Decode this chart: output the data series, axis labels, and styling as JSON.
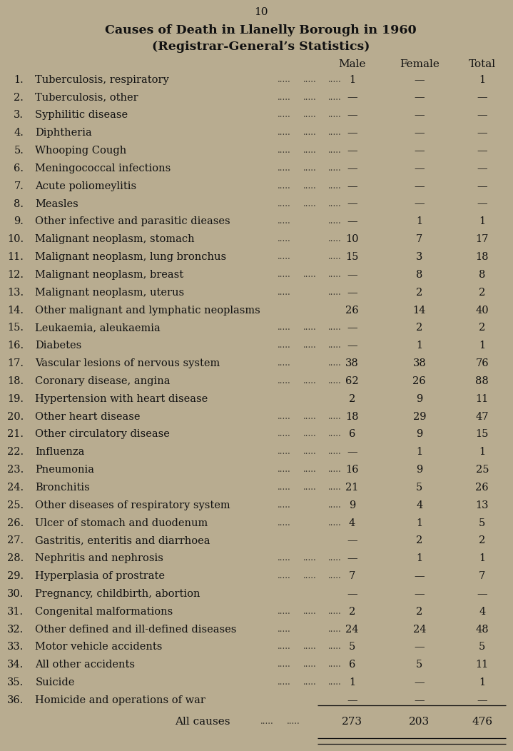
{
  "page_number": "10",
  "title_line1": "Causes of Death in Llanelly Borough in 1960",
  "title_line2": "(Registrar-General’s Statistics)",
  "col_headers": [
    "Male",
    "Female",
    "Total"
  ],
  "rows": [
    {
      "num": "1.",
      "label": "Tuberculosis, respiratory",
      "dots1": ".....",
      "dots2": ".....",
      "male": "1",
      "female": "—",
      "total": "1"
    },
    {
      "num": "2.",
      "label": "Tuberculosis, other",
      "dots1": ".....",
      "dots2": ".....",
      "male": "—",
      "female": "—",
      "total": "—"
    },
    {
      "num": "3.",
      "label": "Syphilitic disease",
      "dots1": ".....",
      "dots2": ".....",
      "male": "—",
      "female": "—",
      "total": "—"
    },
    {
      "num": "4.",
      "label": "Diphtheria",
      "dots1": ".....",
      "dots2": ".....",
      "male": "—",
      "female": "—",
      "total": "—"
    },
    {
      "num": "5.",
      "label": "Whooping Cough",
      "dots1": ".....",
      "dots2": ".....",
      "male": "—",
      "female": "—",
      "total": "—"
    },
    {
      "num": "6.",
      "label": "Meningococcal infections",
      "dots1": ".....",
      "dots2": ".....",
      "male": "—",
      "female": "—",
      "total": "—"
    },
    {
      "num": "7.",
      "label": "Acute poliomeylitis",
      "dots1": ".....",
      "dots2": ".....",
      "male": "—",
      "female": "—",
      "total": "—"
    },
    {
      "num": "8.",
      "label": "Measles",
      "dots1": ".....",
      "dots2": ".....",
      "male": "—",
      "female": "—",
      "total": "—"
    },
    {
      "num": "9.",
      "label": "Other infective and parasitic dieases",
      "dots1": ".....",
      "dots2": "",
      "male": "—",
      "female": "1",
      "total": "1"
    },
    {
      "num": "10.",
      "label": "Malignant neoplasm, stomach",
      "dots1": ".....",
      "dots2": "",
      "male": "10",
      "female": "7",
      "total": "17"
    },
    {
      "num": "11.",
      "label": "Malignant neoplasm, lung bronchus",
      "dots1": ".....",
      "dots2": "",
      "male": "15",
      "female": "3",
      "total": "18"
    },
    {
      "num": "12.",
      "label": "Malignant neoplasm, breast",
      "dots1": ".....",
      "dots2": ".....",
      "male": "—",
      "female": "8",
      "total": "8"
    },
    {
      "num": "13.",
      "label": "Malignant neoplasm, uterus",
      "dots1": ".....",
      "dots2": "",
      "male": "—",
      "female": "2",
      "total": "2"
    },
    {
      "num": "14.",
      "label": "Other malignant and lymphatic neoplasms",
      "dots1": "",
      "dots2": "",
      "male": "26",
      "female": "14",
      "total": "40"
    },
    {
      "num": "15.",
      "label": "Leukaemia, aleukaemia",
      "dots1": ".....",
      "dots2": ".....",
      "male": "—",
      "female": "2",
      "total": "2"
    },
    {
      "num": "16.",
      "label": "Diabetes",
      "dots1": ".....",
      "dots2": ".....",
      "male": "—",
      "female": "1",
      "total": "1"
    },
    {
      "num": "17.",
      "label": "Vascular lesions of nervous system",
      "dots1": ".....",
      "dots2": "",
      "male": "38",
      "female": "38",
      "total": "76"
    },
    {
      "num": "18.",
      "label": "Coronary disease, angina",
      "dots1": ".....",
      "dots2": ".....",
      "male": "62",
      "female": "26",
      "total": "88"
    },
    {
      "num": "19.",
      "label": "Hypertension with heart disease",
      "dots1": "",
      "dots2": "",
      "male": "2",
      "female": "9",
      "total": "11"
    },
    {
      "num": "20.",
      "label": "Other heart disease",
      "dots1": ".....",
      "dots2": ".....",
      "male": "18",
      "female": "29",
      "total": "47"
    },
    {
      "num": "21.",
      "label": "Other circulatory disease",
      "dots1": ".....",
      "dots2": ".....",
      "male": "6",
      "female": "9",
      "total": "15"
    },
    {
      "num": "22.",
      "label": "Influenza",
      "dots1": ".....",
      "dots2": ".....",
      "male": "—",
      "female": "1",
      "total": "1"
    },
    {
      "num": "23.",
      "label": "Pneumonia",
      "dots1": ".....",
      "dots2": ".....",
      "male": "16",
      "female": "9",
      "total": "25"
    },
    {
      "num": "24.",
      "label": "Bronchitis",
      "dots1": ".....",
      "dots2": ".....",
      "male": "21",
      "female": "5",
      "total": "26"
    },
    {
      "num": "25.",
      "label": "Other diseases of respiratory system",
      "dots1": ".....",
      "dots2": "",
      "male": "9",
      "female": "4",
      "total": "13"
    },
    {
      "num": "26.",
      "label": "Ulcer of stomach and duodenum",
      "dots1": ".....",
      "dots2": "",
      "male": "4",
      "female": "1",
      "total": "5"
    },
    {
      "num": "27.",
      "label": "Gastritis, enteritis and diarrhoea",
      "dots1": "",
      "dots2": "",
      "male": "—",
      "female": "2",
      "total": "2"
    },
    {
      "num": "28.",
      "label": "Nephritis and nephrosis",
      "dots1": ".....",
      "dots2": ".....",
      "male": "—",
      "female": "1",
      "total": "1"
    },
    {
      "num": "29.",
      "label": "Hyperplasia of prostrate",
      "dots1": ".....",
      "dots2": ".....",
      "male": "7",
      "female": "—",
      "total": "7"
    },
    {
      "num": "30.",
      "label": "Pregnancy, childbirth, abortion",
      "dots1": "",
      "dots2": "",
      "male": "—",
      "female": "—",
      "total": "—"
    },
    {
      "num": "31.",
      "label": "Congenital malformations",
      "dots1": ".....",
      "dots2": ".....",
      "male": "2",
      "female": "2",
      "total": "4"
    },
    {
      "num": "32.",
      "label": "Other defined and ill-defined diseases",
      "dots1": ".....",
      "dots2": "",
      "male": "24",
      "female": "24",
      "total": "48"
    },
    {
      "num": "33.",
      "label": "Motor vehicle accidents",
      "dots1": ".....",
      "dots2": ".....",
      "male": "5",
      "female": "—",
      "total": "5"
    },
    {
      "num": "34.",
      "label": "All other accidents",
      "dots1": ".....",
      "dots2": ".....",
      "male": "6",
      "female": "5",
      "total": "11"
    },
    {
      "num": "35.",
      "label": "Suicide",
      "dots1": ".....",
      "dots2": ".....",
      "male": "1",
      "female": "—",
      "total": "1"
    },
    {
      "num": "36.",
      "label": "Homicide and operations of war",
      "dots1": "",
      "dots2": "",
      "male": "—",
      "female": "—",
      "total": "—"
    }
  ],
  "footer_label": "All causes",
  "footer_male": "273",
  "footer_female": "203",
  "footer_total": "476",
  "bg_color": "#b8ac90",
  "text_color": "#111111",
  "font_family": "serif"
}
